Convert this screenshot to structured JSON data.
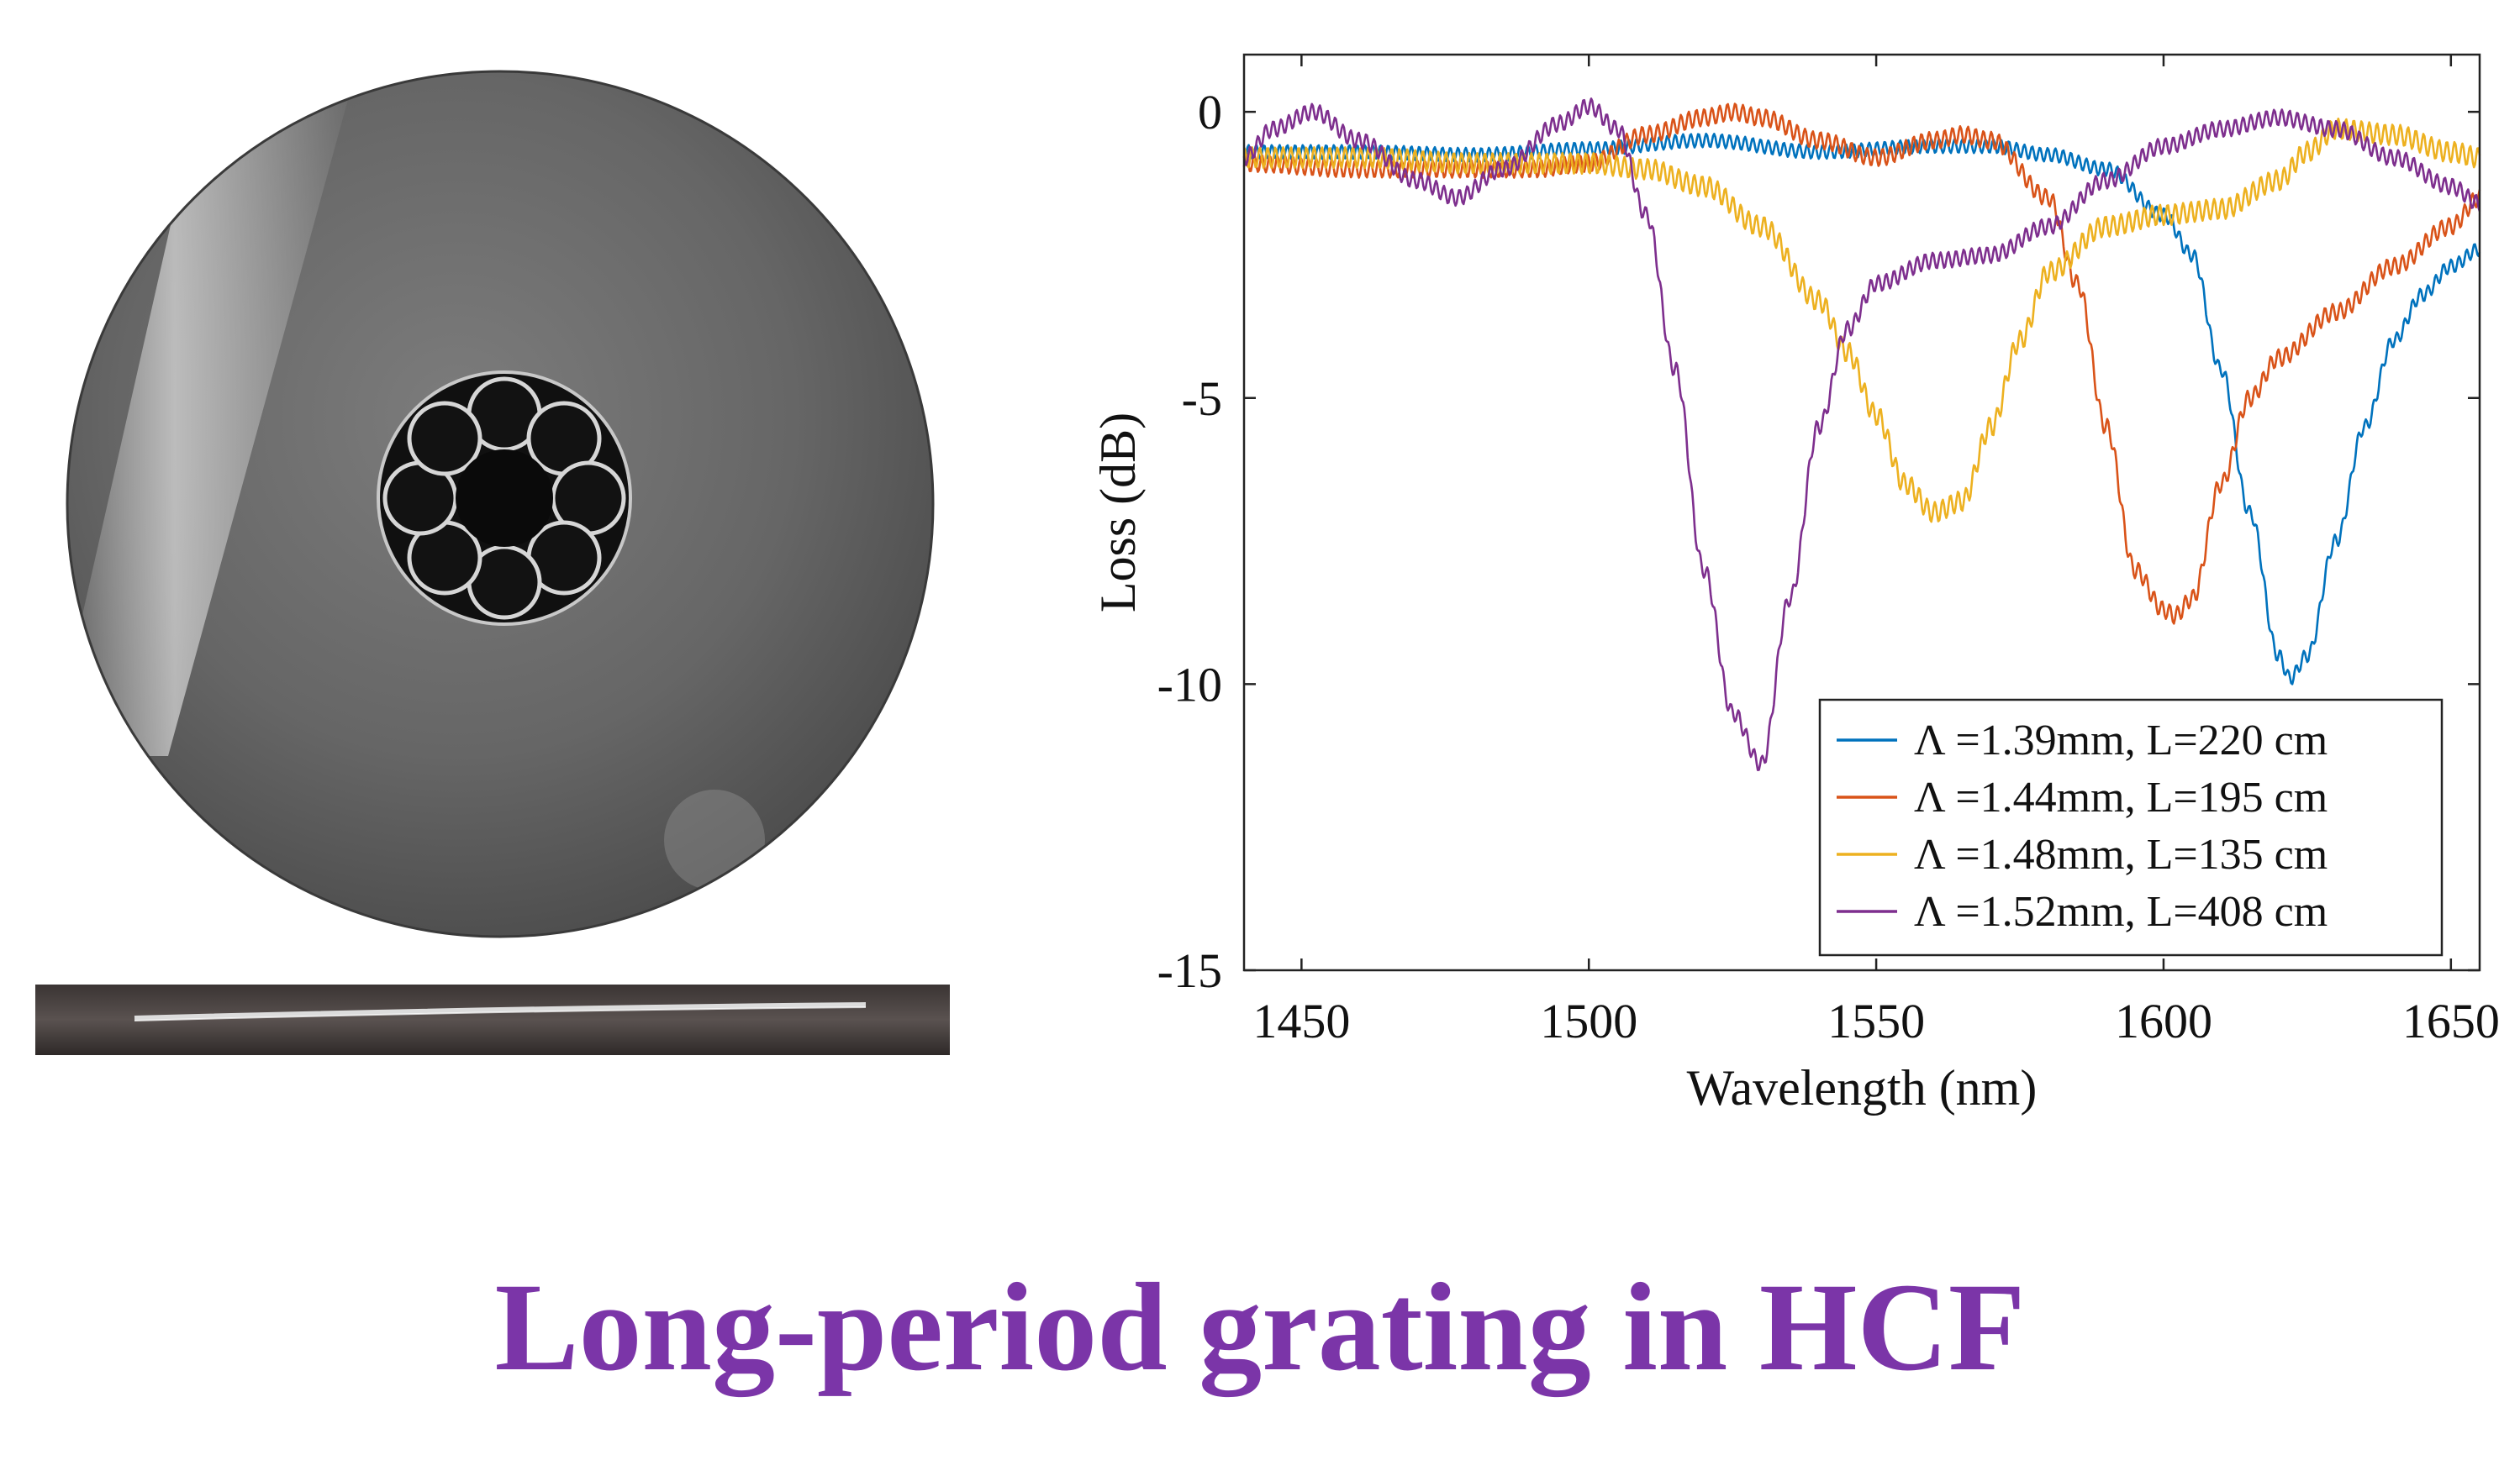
{
  "caption": "Long-period grating in HCF",
  "colors": {
    "caption": "#7b35a8",
    "series_blue": "#0072bd",
    "series_orange": "#d95319",
    "series_yellow": "#edb120",
    "series_purple": "#7e2f8e"
  },
  "images": {
    "fiber_cross_section": "SEM micrograph of hollow-core fiber cross-section",
    "fiber_side_view": "photograph of fiber side view"
  },
  "chart_data": {
    "type": "line",
    "title": "",
    "xlabel": "Wavelength (nm)",
    "ylabel": "Loss (dB)",
    "xlim": [
      1440,
      1655
    ],
    "ylim": [
      -15,
      1
    ],
    "xticks": [
      1450,
      1500,
      1550,
      1600,
      1650
    ],
    "yticks": [
      0,
      -5,
      -10,
      -15
    ],
    "grid": false,
    "legend_position": "bottom-right",
    "series": [
      {
        "name": "Λ =1.39mm, L=220 cm",
        "color": "#0072bd",
        "ripple": 0.12,
        "x": [
          1440,
          1460,
          1480,
          1500,
          1520,
          1540,
          1560,
          1570,
          1580,
          1590,
          1600,
          1605,
          1610,
          1615,
          1620,
          1622,
          1625,
          1630,
          1635,
          1640,
          1645,
          1650,
          1655
        ],
        "y": [
          -0.7,
          -0.7,
          -0.75,
          -0.65,
          -0.5,
          -0.7,
          -0.6,
          -0.6,
          -0.75,
          -1.0,
          -1.8,
          -2.5,
          -4.5,
          -7.0,
          -9.5,
          -9.9,
          -9.5,
          -7.5,
          -5.5,
          -4.0,
          -3.2,
          -2.7,
          -2.4
        ]
      },
      {
        "name": "Λ =1.44mm, L=195 cm",
        "color": "#d95319",
        "ripple": 0.15,
        "x": [
          1440,
          1460,
          1475,
          1490,
          1500,
          1510,
          1520,
          1525,
          1530,
          1540,
          1550,
          1560,
          1565,
          1570,
          1580,
          1585,
          1590,
          1595,
          1600,
          1602,
          1605,
          1610,
          1615,
          1620,
          1630,
          1640,
          1650,
          1655
        ],
        "y": [
          -0.9,
          -1.0,
          -1.0,
          -1.0,
          -0.9,
          -0.4,
          -0.1,
          0.0,
          -0.1,
          -0.5,
          -0.8,
          -0.5,
          -0.4,
          -0.5,
          -1.5,
          -3.0,
          -5.5,
          -8.0,
          -8.7,
          -8.8,
          -8.5,
          -6.5,
          -5.0,
          -4.3,
          -3.5,
          -2.7,
          -2.0,
          -1.5
        ]
      },
      {
        "name": "Λ =1.48mm, L=135 cm",
        "color": "#edb120",
        "ripple": 0.18,
        "x": [
          1440,
          1460,
          1480,
          1500,
          1510,
          1520,
          1530,
          1540,
          1545,
          1550,
          1555,
          1560,
          1565,
          1570,
          1575,
          1580,
          1590,
          1600,
          1610,
          1620,
          1625,
          1630,
          1640,
          1650,
          1655
        ],
        "y": [
          -0.8,
          -0.8,
          -0.9,
          -0.9,
          -1.0,
          -1.3,
          -2.0,
          -3.3,
          -4.2,
          -5.3,
          -6.5,
          -7.0,
          -6.8,
          -5.5,
          -4.0,
          -2.8,
          -2.0,
          -1.8,
          -1.7,
          -1.2,
          -0.7,
          -0.3,
          -0.4,
          -0.7,
          -0.8
        ]
      },
      {
        "name": "Λ =1.52mm, L=408 cm",
        "color": "#7e2f8e",
        "ripple": 0.14,
        "x": [
          1440,
          1445,
          1452,
          1460,
          1470,
          1477,
          1485,
          1495,
          1500,
          1505,
          1510,
          1515,
          1520,
          1525,
          1530,
          1535,
          1540,
          1545,
          1550,
          1560,
          1570,
          1580,
          1590,
          1600,
          1610,
          1620,
          1630,
          1640,
          1650,
          1655
        ],
        "y": [
          -0.8,
          -0.3,
          0.0,
          -0.5,
          -1.2,
          -1.5,
          -1.0,
          -0.2,
          0.1,
          -0.3,
          -1.8,
          -4.5,
          -8.0,
          -10.5,
          -11.4,
          -8.5,
          -5.5,
          -3.8,
          -3.0,
          -2.6,
          -2.5,
          -2.0,
          -1.2,
          -0.6,
          -0.3,
          -0.1,
          -0.3,
          -0.8,
          -1.3,
          -1.6
        ]
      }
    ]
  }
}
